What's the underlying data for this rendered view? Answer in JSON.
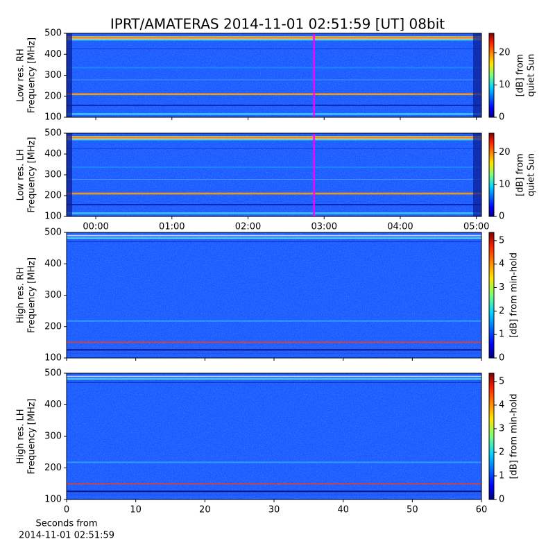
{
  "title": "IPRT/AMATERAS 2014-11-01 02:51:59 [UT]   08bit",
  "chart_data": [
    {
      "type": "heatmap",
      "ylabel": [
        "Low res. RH",
        "Frequency [MHz]"
      ],
      "ylim": [
        100,
        500
      ],
      "yticks": [
        100,
        200,
        300,
        400,
        500
      ],
      "xlim": [
        -23,
        304
      ],
      "xticks": [
        0,
        60,
        120,
        180,
        240,
        300
      ],
      "marker": {
        "value": 172,
        "color": "#ff00ff"
      },
      "colorbar": {
        "label": [
          "[dB] from",
          "quiet Sun"
        ],
        "lim": [
          0,
          26
        ],
        "ticks": [
          0,
          10,
          20
        ]
      }
    },
    {
      "type": "heatmap",
      "ylabel": [
        "Low res. LH",
        "Frequency [MHz]"
      ],
      "ylim": [
        100,
        500
      ],
      "yticks": [
        100,
        200,
        300,
        400,
        500
      ],
      "xlim": [
        -23,
        304
      ],
      "xticks": [
        {
          "value": 0,
          "label": "00:00"
        },
        {
          "value": 60,
          "label": "01:00"
        },
        {
          "value": 120,
          "label": "02:00"
        },
        {
          "value": 180,
          "label": "03:00"
        },
        {
          "value": 240,
          "label": "04:00"
        },
        {
          "value": 300,
          "label": "05:00"
        }
      ],
      "show_xtick_labels": true,
      "marker": {
        "value": 172,
        "color": "#ff00ff"
      },
      "colorbar": {
        "label": [
          "[dB] from",
          "quiet Sun"
        ],
        "lim": [
          0,
          26
        ],
        "ticks": [
          0,
          10,
          20
        ]
      }
    },
    {
      "type": "heatmap",
      "ylabel": [
        "High res. RH",
        "Frequency [MHz]"
      ],
      "ylim": [
        100,
        500
      ],
      "yticks": [
        100,
        200,
        300,
        400,
        500
      ],
      "xlim": [
        0,
        60
      ],
      "xticks": [
        0,
        10,
        20,
        30,
        40,
        50,
        60
      ],
      "colorbar": {
        "label": [
          "[dB] from min-hold"
        ],
        "lim": [
          0,
          5.35
        ],
        "ticks": [
          0,
          1,
          2,
          3,
          4,
          5
        ]
      }
    },
    {
      "type": "heatmap",
      "ylabel": [
        "High res. LH",
        "Frequency [MHz]"
      ],
      "ylim": [
        100,
        500
      ],
      "yticks": [
        100,
        200,
        300,
        400,
        500
      ],
      "xlim": [
        0,
        60
      ],
      "xticks": [
        0,
        10,
        20,
        30,
        40,
        50,
        60
      ],
      "show_xtick_labels": true,
      "xlabel": [
        "Seconds from",
        "2014-11-01 02:51:59"
      ],
      "colorbar": {
        "label": [
          "[dB] from min-hold"
        ],
        "lim": [
          0,
          5.35
        ],
        "ticks": [
          0,
          1,
          2,
          3,
          4,
          5
        ]
      }
    }
  ]
}
